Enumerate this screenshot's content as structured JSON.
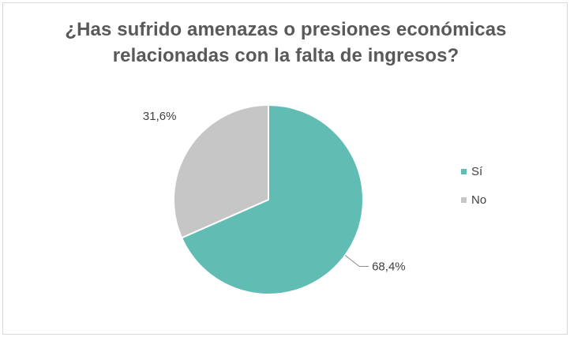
{
  "chart_data": {
    "type": "pie",
    "title": "¿Has sufrido amenazas o presiones económicas relacionadas con la falta de ingresos?",
    "categories": [
      "Sí",
      "No"
    ],
    "values": [
      68.4,
      31.6
    ],
    "labels": [
      "68,4%",
      "31,6%"
    ],
    "colors": [
      "#61bdb4",
      "#c6c6c6"
    ],
    "legend_position": "right",
    "start_angle": "12 o'clock",
    "direction": "clockwise"
  }
}
